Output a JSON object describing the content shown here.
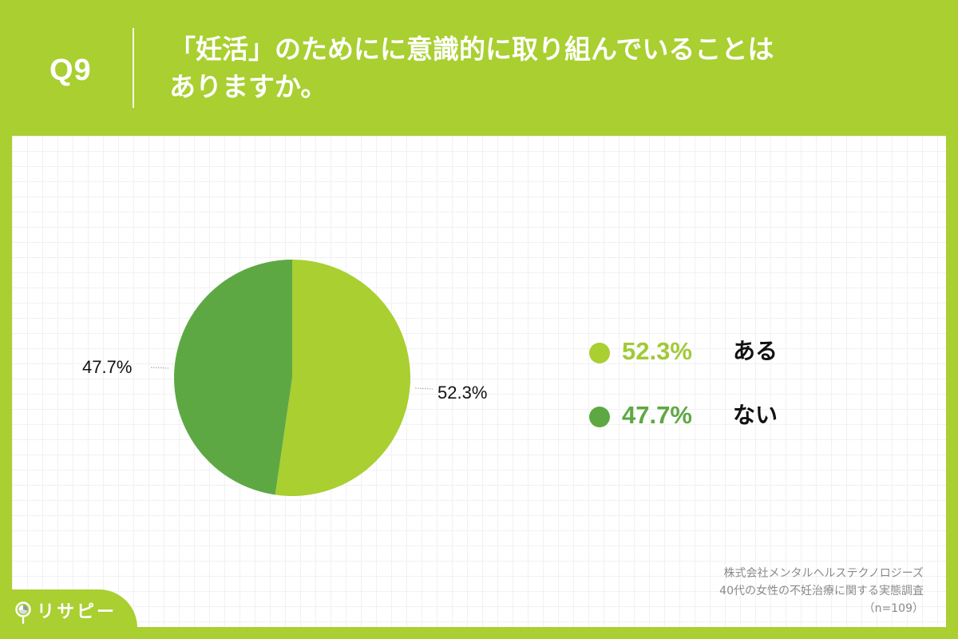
{
  "header": {
    "question_number": "Q9",
    "question_lines": [
      "「妊活」のためにに意識的に取り組んでいることは",
      "ありますか。"
    ]
  },
  "colors": {
    "background": "#a9cf31",
    "slice_yes": "#a9cf31",
    "slice_no": "#5ea844",
    "legend_yes_text": "#a2c938",
    "legend_no_text": "#5ea844"
  },
  "chart_data": {
    "type": "pie",
    "title": "「妊活」のために意識的に取り組んでいることはありますか。",
    "categories": [
      "ある",
      "ない"
    ],
    "values": [
      52.3,
      47.7
    ],
    "unit": "%",
    "start_angle": "12 o'clock",
    "direction": "clockwise",
    "slice_labels": [
      "52.3%",
      "47.7%"
    ],
    "legend_position": "right",
    "n": 109
  },
  "legend": {
    "items": [
      {
        "percent": "52.3%",
        "label": "ある"
      },
      {
        "percent": "47.7%",
        "label": "ない"
      }
    ]
  },
  "slice_labels": {
    "yes": "52.3%",
    "no": "47.7%"
  },
  "source": {
    "lines": [
      "株式会社メンタルヘルステクノロジーズ",
      "40代の女性の不妊治療に関する実態調査",
      "（n=109）"
    ]
  },
  "logo": {
    "text": "リサピー"
  }
}
